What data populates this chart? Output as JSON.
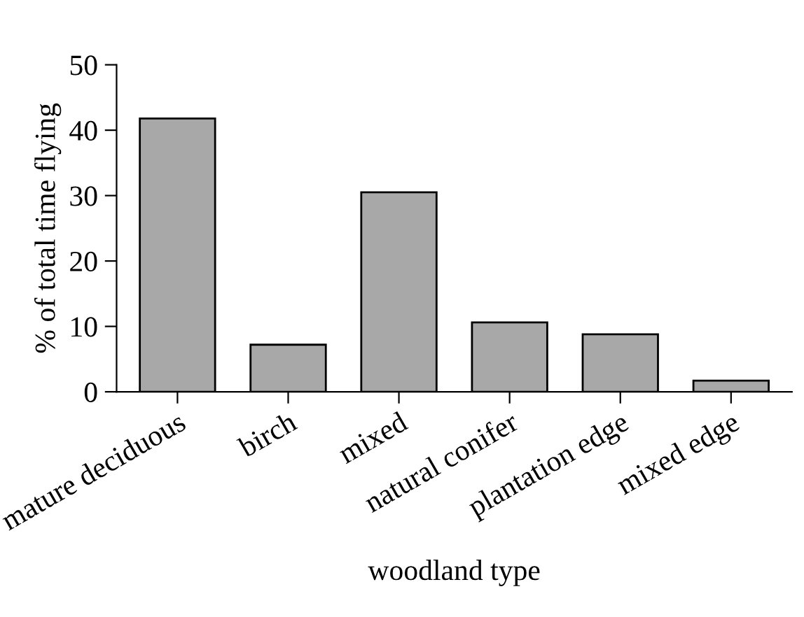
{
  "chart_data": {
    "type": "bar",
    "xlabel": "woodland type",
    "ylabel": "% of total time flying",
    "categories": [
      "mature deciduous",
      "birch",
      "mixed",
      "natural conifer",
      "plantation edge",
      "mixed edge"
    ],
    "values": [
      41.8,
      7.2,
      30.5,
      10.6,
      8.8,
      1.7
    ],
    "color": "#a8a8a8",
    "ylim": [
      0,
      50
    ],
    "yticks": [
      0,
      10,
      20,
      30,
      40,
      50
    ],
    "grid": false,
    "legend": false
  }
}
